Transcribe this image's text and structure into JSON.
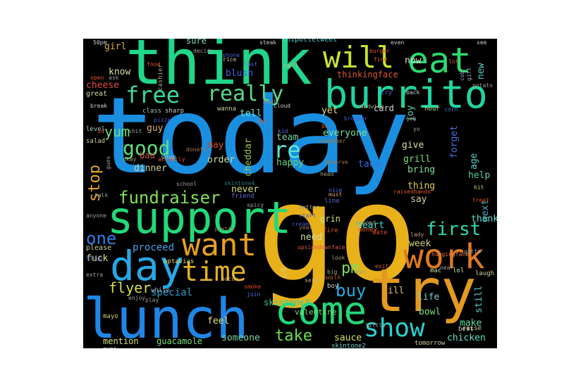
{
  "wordcloud": {
    "background": "#000000",
    "words": [
      {
        "text": "today",
        "color": "#1a8fe0"
      },
      {
        "text": "go",
        "color": "#e8b11a"
      },
      {
        "text": "think",
        "color": "#20d68a"
      },
      {
        "text": "lunch",
        "color": "#1f86e6"
      },
      {
        "text": "support",
        "color": "#22d97a"
      },
      {
        "text": "burrito",
        "color": "#1fd6a0"
      },
      {
        "text": "try",
        "color": "#e39a1f"
      },
      {
        "text": "eat",
        "color": "#2dd96e"
      },
      {
        "text": "will",
        "color": "#c7e62d"
      },
      {
        "text": "day",
        "color": "#27a8e6"
      },
      {
        "text": "come",
        "color": "#22d97a"
      },
      {
        "text": "work",
        "color": "#e07a20"
      },
      {
        "text": "want",
        "color": "#e6a01f"
      },
      {
        "text": "time",
        "color": "#e6b41f"
      },
      {
        "text": "show",
        "color": "#2ad0d0"
      },
      {
        "text": "free",
        "color": "#3ed99a"
      },
      {
        "text": "really",
        "color": "#5ad98a"
      },
      {
        "text": "fundraiser",
        "color": "#7fe05a"
      },
      {
        "text": "first",
        "color": "#2ad9b0"
      },
      {
        "text": "good",
        "color": "#5de07a"
      },
      {
        "text": "re",
        "color": "#5ae6d6"
      },
      {
        "text": "one",
        "color": "#2e7ee6"
      },
      {
        "text": "pm",
        "color": "#7ae05a"
      },
      {
        "text": "buy",
        "color": "#2aa9e0"
      },
      {
        "text": "take",
        "color": "#6ae04a"
      },
      {
        "text": "yum",
        "color": "#6ae07a"
      },
      {
        "text": "flyer",
        "color": "#d6e04a"
      },
      {
        "text": "stop",
        "color": "#e0a82a"
      },
      {
        "text": "try",
        "color": "#e39a1f"
      },
      {
        "text": "proceed",
        "color": "#4aa0e0"
      },
      {
        "text": "special",
        "color": "#2aa0d0"
      },
      {
        "text": "may",
        "color": "#d04a2a"
      },
      {
        "text": "happy",
        "color": "#6ad07a"
      },
      {
        "text": "taco",
        "color": "#3a6ae0"
      },
      {
        "text": "dinner",
        "color": "#d0d0a0"
      },
      {
        "text": "order",
        "color": "#d0e0a0"
      },
      {
        "text": "team",
        "color": "#7ad0a0"
      },
      {
        "text": "cheddar",
        "color": "#a0c04a"
      },
      {
        "text": "never",
        "color": "#d0e07a"
      },
      {
        "text": "heart",
        "color": "#3ae0d0"
      },
      {
        "text": "bring",
        "color": "#7ae0a0"
      },
      {
        "text": "grill",
        "color": "#7ae07a"
      },
      {
        "text": "thing",
        "color": "#e0d04a"
      },
      {
        "text": "say",
        "color": "#d0d0a0"
      },
      {
        "text": "help",
        "color": "#5ad0a0"
      },
      {
        "text": "thank",
        "color": "#5ae0d0"
      },
      {
        "text": "next",
        "color": "#4ab0c0"
      },
      {
        "text": "week",
        "color": "#d0d07a"
      },
      {
        "text": "life",
        "color": "#7ad0d0"
      },
      {
        "text": "bowl",
        "color": "#7ae07a"
      },
      {
        "text": "still",
        "color": "#5ad0d0"
      },
      {
        "text": "make",
        "color": "#5ae0a0"
      },
      {
        "text": "chicken",
        "color": "#5ae0c0"
      },
      {
        "text": "sauce",
        "color": "#d0e05a"
      },
      {
        "text": "someone",
        "color": "#7ad0a0"
      },
      {
        "text": "guacamole",
        "color": "#7ae07a"
      },
      {
        "text": "mention",
        "color": "#d0e07a"
      },
      {
        "text": "feel",
        "color": "#e0e07a"
      },
      {
        "text": "skintone3",
        "color": "#2ad0a0"
      },
      {
        "text": "valentine",
        "color": "#7ae07a"
      },
      {
        "text": "ill",
        "color": "#e0c07a"
      },
      {
        "text": "us",
        "color": "#e0c07a"
      },
      {
        "text": "fuck",
        "color": "#e0e07a"
      },
      {
        "text": "guy",
        "color": "#e0b07a"
      },
      {
        "text": "bad",
        "color": "#d04a4a"
      },
      {
        "text": "need",
        "color": "#d0e0a0"
      },
      {
        "text": "grin",
        "color": "#d0e07a"
      },
      {
        "text": "everyone",
        "color": "#7ae0a0"
      },
      {
        "text": "give",
        "color": "#d0e0a0"
      },
      {
        "text": "forget",
        "color": "#4a70e0"
      },
      {
        "text": "age",
        "color": "#5ad0d0"
      },
      {
        "text": "yet",
        "color": "#e0e07a"
      },
      {
        "text": "card",
        "color": "#d0d0d0"
      },
      {
        "text": "joy",
        "color": "#5ad0a0"
      },
      {
        "text": "tell",
        "color": "#7ae0c0"
      },
      {
        "text": "cheese",
        "color": "#e04a4a"
      },
      {
        "text": "know",
        "color": "#d0e0a0"
      },
      {
        "text": "girl",
        "color": "#e0b04a"
      },
      {
        "text": "sure",
        "color": "#7ae0c0"
      },
      {
        "text": "blush",
        "color": "#4a60e0"
      },
      {
        "text": "now",
        "color": "#d0e0d0"
      },
      {
        "text": "new",
        "color": "#5ad0c0"
      },
      {
        "text": "chipotletweet",
        "color": "#5ad0d0"
      },
      {
        "text": "thinkingface",
        "color": "#e05a2a"
      },
      {
        "text": "mayo",
        "color": "#d0d07a"
      },
      {
        "text": "please",
        "color": "#d0d0a0"
      },
      {
        "text": "chip",
        "color": "#4a60d0"
      },
      {
        "text": "mac",
        "color": "#d0e0a0"
      },
      {
        "text": "lol",
        "color": "#d0e0a0"
      },
      {
        "text": "laugh",
        "color": "#d0d0a0"
      },
      {
        "text": "optavias",
        "color": "#e0e07a"
      },
      {
        "text": "skintone2",
        "color": "#7ad0d0"
      },
      {
        "text": "soup",
        "color": "#a0d0d0"
      },
      {
        "text": "great",
        "color": "#d0e0a0"
      },
      {
        "text": "level",
        "color": "#a0d0d0"
      },
      {
        "text": "salad",
        "color": "#d0d0a0"
      },
      {
        "text": "class",
        "color": "#a0c0c0"
      },
      {
        "text": "sharp",
        "color": "#d0d0d0"
      },
      {
        "text": "wanna",
        "color": "#d0d0a0"
      },
      {
        "text": "hour",
        "color": "#d0d0a0"
      },
      {
        "text": "tomorrow",
        "color": "#d0d0a0"
      },
      {
        "text": "best",
        "color": "#d0d0d0"
      },
      {
        "text": "raise",
        "color": "#d0d0a0"
      },
      {
        "text": "money",
        "color": "#e05a2a"
      },
      {
        "text": "date",
        "color": "#e04a2a"
      },
      {
        "text": "boy",
        "color": "#d0d0d0"
      },
      {
        "text": "fire",
        "color": "#e05a2a"
      },
      {
        "text": "line",
        "color": "#5a6ae0"
      },
      {
        "text": "skintone4",
        "color": "#2a8080"
      },
      {
        "text": "friend",
        "color": "#6a6ae0"
      },
      {
        "text": "bacon",
        "color": "#d0b07a"
      },
      {
        "text": "smoke",
        "color": "#e04a2a"
      },
      {
        "text": "join",
        "color": "#5a6ae0"
      },
      {
        "text": "walk",
        "color": "#a05a2a"
      },
      {
        "text": "serve",
        "color": "#d0b07a"
      },
      {
        "text": "look",
        "color": "#a0a07a"
      },
      {
        "text": "big",
        "color": "#a0a07a"
      },
      {
        "text": "upsidedownface",
        "color": "#e05a4a"
      },
      {
        "text": "huggingface",
        "color": "#e07a4a"
      },
      {
        "text": "lady",
        "color": "#d0a07a"
      },
      {
        "text": "pretty",
        "color": "#a07a4a"
      },
      {
        "text": "second",
        "color": "#a0a07a"
      },
      {
        "text": "raisedhands",
        "color": "#e05a2a"
      },
      {
        "text": "treat",
        "color": "#e04a2a"
      },
      {
        "text": "hit",
        "color": "#d0d07a"
      },
      {
        "text": "corn",
        "color": "#4a70d0"
      },
      {
        "text": "sandwich",
        "color": "#a0a07a"
      },
      {
        "text": "cry",
        "color": "#4a5ad0"
      },
      {
        "text": "back",
        "color": "#d0d0d0"
      },
      {
        "text": "bc",
        "color": "#e05a2a"
      },
      {
        "text": "kid",
        "color": "#5a6ae0"
      },
      {
        "text": "brother",
        "color": "#4a5ad0"
      },
      {
        "text": "remember",
        "color": "#a07a4a"
      },
      {
        "text": "deserve",
        "color": "#a07a4a"
      },
      {
        "text": "head",
        "color": "#a0a07a"
      },
      {
        "text": "nice",
        "color": "#5a6ae0"
      },
      {
        "text": "must",
        "color": "#d0a07a"
      },
      {
        "text": "better",
        "color": "#a0a07a"
      },
      {
        "text": "start",
        "color": "#4a5ad0"
      },
      {
        "text": "cream",
        "color": "#4a5ad0"
      },
      {
        "text": "year",
        "color": "#a07a4a"
      },
      {
        "text": "win",
        "color": "#a0a07a"
      },
      {
        "text": "exit",
        "color": "#e05a2a"
      },
      {
        "text": "let",
        "color": "#e05a2a"
      },
      {
        "text": "much",
        "color": "#a0a07a"
      },
      {
        "text": "cloud",
        "color": "#d0d0d0"
      },
      {
        "text": "phone",
        "color": "#4a5ad0"
      },
      {
        "text": "rice",
        "color": "#d0d0a0"
      },
      {
        "text": "steak",
        "color": "#d0d0d0"
      },
      {
        "text": "last",
        "color": "#5a6ae0"
      },
      {
        "text": "call",
        "color": "#d0b07a"
      },
      {
        "text": "even",
        "color": "#d0d0d0"
      },
      {
        "text": "burger",
        "color": "#e05a2a"
      },
      {
        "text": "find",
        "color": "#e05a2a"
      },
      {
        "text": "lot",
        "color": "#e05a2a"
      },
      {
        "text": "see",
        "color": "#d0d0d0"
      },
      {
        "text": "cob",
        "color": "#a0a0d0"
      },
      {
        "text": "gift",
        "color": "#a0a0d0"
      },
      {
        "text": "potato",
        "color": "#a0a0a0"
      },
      {
        "text": "talk",
        "color": "#a0a0a0"
      },
      {
        "text": "cashier",
        "color": "#a0a07a"
      },
      {
        "text": "food",
        "color": "#e05a2a"
      },
      {
        "text": "open",
        "color": "#e05a2a"
      },
      {
        "text": "ask",
        "color": "#a0a0a0"
      },
      {
        "text": "break",
        "color": "#d0d0d0"
      },
      {
        "text": "pizza",
        "color": "#4a5ad0"
      },
      {
        "text": "donate",
        "color": "#a07a4a"
      },
      {
        "text": "actually",
        "color": "#e05a2a"
      },
      {
        "text": "okay",
        "color": "#a0a07a"
      },
      {
        "text": "gues",
        "color": "#a0a0a0"
      },
      {
        "text": "school",
        "color": "#a0a0a0"
      },
      {
        "text": "anyone",
        "color": "#a0a0a0"
      },
      {
        "text": "extra",
        "color": "#a0a0a0"
      },
      {
        "text": "enjoy",
        "color": "#a0a0a0"
      },
      {
        "text": "play",
        "color": "#a0a0a0"
      },
      {
        "text": "white",
        "color": "#a0a0a0"
      },
      {
        "text": "ever",
        "color": "#d0d0d0"
      },
      {
        "text": "gotta",
        "color": "#a0a0a0"
      },
      {
        "text": "job",
        "color": "#a0a0a0"
      },
      {
        "text": "near",
        "color": "#a0a0a0"
      },
      {
        "text": "little",
        "color": "#a0a0a0"
      },
      {
        "text": "spicy",
        "color": "#a0a0a0"
      },
      {
        "text": "decide",
        "color": "#a0a0a0"
      },
      {
        "text": "shit",
        "color": "#a0a0a0"
      },
      {
        "text": "50pm",
        "color": "#d0d0d0"
      },
      {
        "text": "id",
        "color": "#e05a2a"
      },
      {
        "text": "yo",
        "color": "#a0a0a0"
      },
      {
        "text": "hot",
        "color": "#a0a0a0"
      }
    ]
  }
}
